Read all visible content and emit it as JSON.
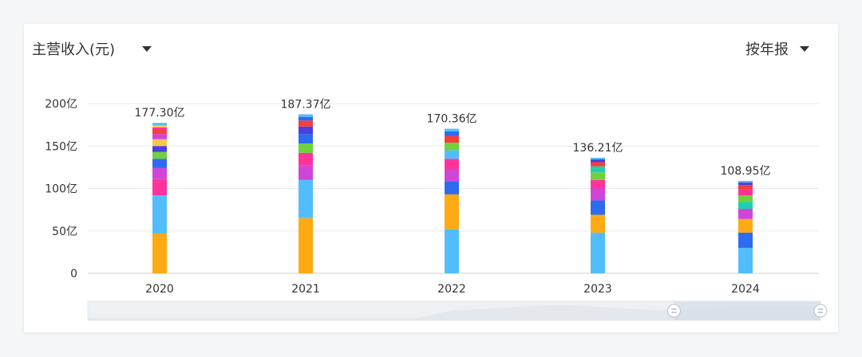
{
  "header": {
    "metric_label": "主营收入(元)",
    "period_label": "按年报"
  },
  "colors": {
    "orange": "#FFAA12",
    "lightblue": "#52BDFC",
    "blue": "#2E6BF1",
    "pink": "#FF3399",
    "magenta": "#D044D8",
    "green": "#6FD13B",
    "indigo": "#4B3FE0",
    "yellow": "#F8C64A",
    "red": "#F43F3B",
    "teal": "#1ECFB3",
    "grid": "#e8e8e8",
    "slider_track": "#eef0f3",
    "slider_window": "#d6dde6",
    "slider_area": "#e3e8ef"
  },
  "chart_data": {
    "type": "bar",
    "stacked": true,
    "categories": [
      "2020",
      "2021",
      "2022",
      "2023",
      "2024"
    ],
    "totals": [
      177.3,
      187.37,
      170.36,
      136.21,
      108.95
    ],
    "total_labels": [
      "177.30亿",
      "187.37亿",
      "170.36亿",
      "136.21亿",
      "108.95亿"
    ],
    "yticks": [
      {
        "value": 0,
        "label": "0"
      },
      {
        "value": 50,
        "label": "50亿"
      },
      {
        "value": 100,
        "label": "100亿"
      },
      {
        "value": 150,
        "label": "150亿"
      },
      {
        "value": 200,
        "label": "200亿"
      }
    ],
    "ylim": [
      0,
      200
    ],
    "unit": "亿",
    "segments": [
      [
        {
          "color": "orange",
          "value": 47
        },
        {
          "color": "lightblue",
          "value": 45
        },
        {
          "color": "pink",
          "value": 19
        },
        {
          "color": "magenta",
          "value": 13
        },
        {
          "color": "blue",
          "value": 11
        },
        {
          "color": "green",
          "value": 8
        },
        {
          "color": "indigo",
          "value": 7
        },
        {
          "color": "yellow",
          "value": 8
        },
        {
          "color": "magenta",
          "value": 6
        },
        {
          "color": "red",
          "value": 5
        },
        {
          "color": "pink",
          "value": 3
        },
        {
          "color": "yellow",
          "value": 2.3
        },
        {
          "color": "lightblue",
          "value": 3
        }
      ],
      [
        {
          "color": "orange",
          "value": 65
        },
        {
          "color": "lightblue",
          "value": 45
        },
        {
          "color": "magenta",
          "value": 17
        },
        {
          "color": "pink",
          "value": 15
        },
        {
          "color": "green",
          "value": 11
        },
        {
          "color": "blue",
          "value": 11
        },
        {
          "color": "indigo",
          "value": 9
        },
        {
          "color": "red",
          "value": 7
        },
        {
          "color": "blue",
          "value": 4.37
        },
        {
          "color": "lightblue",
          "value": 3
        }
      ],
      [
        {
          "color": "lightblue",
          "value": 52
        },
        {
          "color": "orange",
          "value": 41
        },
        {
          "color": "blue",
          "value": 15
        },
        {
          "color": "magenta",
          "value": 15
        },
        {
          "color": "pink",
          "value": 12
        },
        {
          "color": "lightblue",
          "value": 10
        },
        {
          "color": "green",
          "value": 9
        },
        {
          "color": "red",
          "value": 8
        },
        {
          "color": "blue",
          "value": 5.36
        },
        {
          "color": "lightblue",
          "value": 3
        }
      ],
      [
        {
          "color": "lightblue",
          "value": 48
        },
        {
          "color": "orange",
          "value": 21
        },
        {
          "color": "blue",
          "value": 17
        },
        {
          "color": "magenta",
          "value": 14
        },
        {
          "color": "pink",
          "value": 10
        },
        {
          "color": "green",
          "value": 9
        },
        {
          "color": "teal",
          "value": 7
        },
        {
          "color": "red",
          "value": 5
        },
        {
          "color": "indigo",
          "value": 3.21
        },
        {
          "color": "lightblue",
          "value": 2
        }
      ],
      [
        {
          "color": "lightblue",
          "value": 30
        },
        {
          "color": "blue",
          "value": 18
        },
        {
          "color": "orange",
          "value": 16
        },
        {
          "color": "magenta",
          "value": 12
        },
        {
          "color": "teal",
          "value": 8
        },
        {
          "color": "green",
          "value": 8
        },
        {
          "color": "pink",
          "value": 7
        },
        {
          "color": "red",
          "value": 5
        },
        {
          "color": "indigo",
          "value": 2.95
        },
        {
          "color": "lightblue",
          "value": 2
        }
      ]
    ],
    "slider": {
      "window_start": 0.8,
      "window_end": 1.0
    }
  }
}
